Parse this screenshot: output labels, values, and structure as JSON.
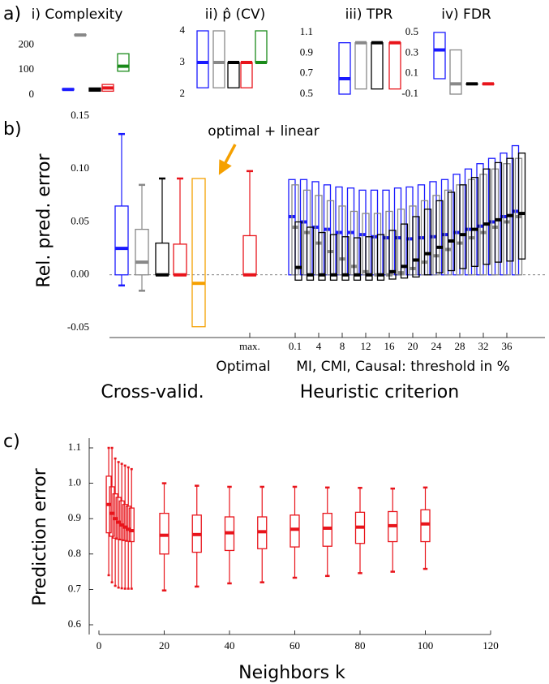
{
  "chart_data": [
    {
      "type": "box",
      "panel": "a)",
      "title": "i) Complexity",
      "ylim": [
        0,
        260
      ],
      "yticks": [
        0,
        100,
        200
      ],
      "boxes": [
        {
          "color": "#1a1aff",
          "q1": 20,
          "median": 22,
          "q3": 25
        },
        {
          "color": "#888888",
          "q1": 238,
          "median": 240,
          "q3": 242
        },
        {
          "color": "#000000",
          "q1": 15,
          "median": 20,
          "q3": 28
        },
        {
          "color": "#e8141b",
          "q1": 15,
          "median": 28,
          "q3": 42
        },
        {
          "color": "#1a8a1a",
          "q1": 95,
          "median": 115,
          "q3": 165
        }
      ]
    },
    {
      "type": "box",
      "title": "ii) p̂ (CV)",
      "ylim": [
        2,
        4
      ],
      "yticks": [
        2,
        3,
        4
      ],
      "boxes": [
        {
          "color": "#1a1aff",
          "q1": 2.2,
          "median": 3,
          "q3": 4
        },
        {
          "color": "#888888",
          "q1": 2.2,
          "median": 3,
          "q3": 4
        },
        {
          "color": "#000000",
          "q1": 2.2,
          "median": 3,
          "q3": 3
        },
        {
          "color": "#e8141b",
          "q1": 2.2,
          "median": 3,
          "q3": 3
        },
        {
          "color": "#1a8a1a",
          "q1": 3,
          "median": 3,
          "q3": 4
        }
      ]
    },
    {
      "type": "box",
      "title": "iii) TPR",
      "ylim": [
        0.5,
        1.1
      ],
      "yticks": [
        0.5,
        0.7,
        0.9,
        1.1
      ],
      "boxes": [
        {
          "color": "#1a1aff",
          "q1": 0.5,
          "median": 0.65,
          "q3": 1.0
        },
        {
          "color": "#888888",
          "q1": 0.55,
          "median": 1.0,
          "q3": 1.0
        },
        {
          "color": "#000000",
          "q1": 0.55,
          "median": 1.0,
          "q3": 1.0
        },
        {
          "color": "#e8141b",
          "q1": 0.55,
          "median": 1.0,
          "q3": 1.0
        }
      ]
    },
    {
      "type": "box",
      "title": "iv) FDR",
      "ylim": [
        -0.1,
        0.5
      ],
      "yticks": [
        -0.1,
        0.1,
        0.3,
        0.5
      ],
      "boxes": [
        {
          "color": "#1a1aff",
          "q1": 0.05,
          "median": 0.33,
          "q3": 0.5
        },
        {
          "color": "#888888",
          "q1": -0.1,
          "median": 0,
          "q3": 0.33
        },
        {
          "color": "#000000",
          "q1": 0,
          "median": 0,
          "q3": 0
        },
        {
          "color": "#e8141b",
          "q1": 0,
          "median": 0,
          "q3": 0
        }
      ]
    },
    {
      "type": "box",
      "panel": "b)",
      "ylabel": "Rel. pred. error",
      "ylim": [
        -0.05,
        0.15
      ],
      "yticks": [
        {
          "value": -0.05,
          "label": "-0.05"
        },
        {
          "value": 0,
          "label": "0.00"
        },
        {
          "value": 0.05,
          "label": "0.05"
        },
        {
          "value": 0.1,
          "label": "0.10"
        },
        {
          "value": 0.15,
          "label": "0.15"
        }
      ],
      "boxes": [
        {
          "color": "#1a1aff",
          "whislo": -0.01,
          "q1": 0,
          "median": 0.025,
          "q3": 0.065,
          "whishi": 0.133
        },
        {
          "color": "#888888",
          "whislo": -0.015,
          "q1": 0,
          "median": 0.012,
          "q3": 0.043,
          "whishi": 0.085
        },
        {
          "color": "#000000",
          "whislo": 0,
          "q1": 0,
          "median": 0,
          "q3": 0.03,
          "whishi": 0.091
        },
        {
          "color": "#e8141b",
          "whislo": 0,
          "q1": 0,
          "median": 0,
          "q3": 0.029,
          "whishi": 0.091
        },
        {
          "color": "#f5a000",
          "q1": -0.049,
          "median": -0.008,
          "q3": 0.091
        },
        {
          "color": "#e8141b",
          "whislo": 0,
          "q1": 0,
          "median": 0,
          "q3": 0.037,
          "whishi": 0.098
        }
      ],
      "annotation": "optimal + linear",
      "annotation_color": "#f5a000",
      "optimal_tick": "max.",
      "optimal_label": "Optimal",
      "threshold_label": "MI, CMI, Causal: threshold in %",
      "group_labels": [
        "Cross-valid.",
        "Heuristic criterion"
      ],
      "categories": [
        0.1,
        null,
        4,
        null,
        8,
        null,
        12,
        null,
        16,
        null,
        20,
        null,
        24,
        null,
        28,
        null,
        32,
        null,
        36,
        null
      ],
      "series": [
        {
          "color": "#1a1aff",
          "q1": [
            0,
            0,
            0,
            0,
            0,
            0,
            0,
            0,
            0,
            0,
            0,
            0,
            0,
            0,
            0,
            0,
            0,
            0,
            0,
            0
          ],
          "median": [
            0.055,
            0.05,
            0.045,
            0.043,
            0.04,
            0.04,
            0.038,
            0.036,
            0.035,
            0.035,
            0.034,
            0.035,
            0.036,
            0.038,
            0.04,
            0.043,
            0.046,
            0.05,
            0.055,
            0.06
          ],
          "q3": [
            0.09,
            0.09,
            0.088,
            0.085,
            0.083,
            0.082,
            0.08,
            0.08,
            0.08,
            0.082,
            0.083,
            0.085,
            0.088,
            0.09,
            0.095,
            0.1,
            0.105,
            0.11,
            0.115,
            0.122
          ]
        },
        {
          "color": "#888888",
          "q1": [
            0,
            0,
            0,
            0,
            0,
            0,
            0,
            0,
            0,
            0,
            0,
            0,
            0,
            0,
            0,
            0,
            0,
            0,
            0,
            0
          ],
          "median": [
            0.045,
            0.04,
            0.03,
            0.022,
            0.015,
            0.008,
            0.003,
            0,
            0,
            0.002,
            0.006,
            0.012,
            0.018,
            0.024,
            0.03,
            0.035,
            0.04,
            0.045,
            0.05,
            0.055
          ],
          "q3": [
            0.085,
            0.08,
            0.075,
            0.07,
            0.065,
            0.06,
            0.058,
            0.058,
            0.06,
            0.062,
            0.065,
            0.07,
            0.075,
            0.08,
            0.085,
            0.09,
            0.095,
            0.1,
            0.105,
            0.11
          ]
        },
        {
          "color": "#000000",
          "q1": [
            -0.005,
            -0.005,
            -0.005,
            -0.005,
            -0.005,
            -0.005,
            -0.005,
            -0.005,
            -0.004,
            -0.003,
            -0.002,
            0,
            0.002,
            0.004,
            0.006,
            0.008,
            0.01,
            0.012,
            0.013,
            0.015
          ],
          "median": [
            0.007,
            0,
            0,
            0,
            0,
            0,
            0,
            0,
            0.003,
            0.008,
            0.014,
            0.02,
            0.026,
            0.032,
            0.038,
            0.043,
            0.048,
            0.052,
            0.056,
            0.058
          ],
          "q3": [
            0.05,
            0.045,
            0.04,
            0.038,
            0.036,
            0.035,
            0.036,
            0.038,
            0.042,
            0.048,
            0.055,
            0.062,
            0.07,
            0.078,
            0.085,
            0.092,
            0.1,
            0.106,
            0.11,
            0.115
          ]
        }
      ]
    },
    {
      "type": "box",
      "panel": "c)",
      "ylabel": "Prediction error",
      "xlabel": "Neighbors k",
      "xlim": [
        0,
        120
      ],
      "xticks": [
        0,
        20,
        40,
        60,
        80,
        100,
        120
      ],
      "ylim": [
        0.6,
        1.1
      ],
      "yticks": [
        0.6,
        0.7,
        0.8,
        0.9,
        {
          "value": 1.0,
          "label": "1.0"
        },
        1.1
      ],
      "x": [
        3,
        4,
        5,
        6,
        7,
        8,
        9,
        10,
        20,
        30,
        40,
        50,
        60,
        70,
        80,
        90,
        100
      ],
      "series": [
        {
          "color": "#e8141b",
          "whislo": [
            0.74,
            0.72,
            0.71,
            0.705,
            0.703,
            0.702,
            0.702,
            0.702,
            0.697,
            0.708,
            0.717,
            0.72,
            0.733,
            0.738,
            0.746,
            0.75,
            0.758
          ],
          "q1": [
            0.86,
            0.85,
            0.845,
            0.842,
            0.84,
            0.838,
            0.836,
            0.835,
            0.8,
            0.805,
            0.81,
            0.815,
            0.82,
            0.822,
            0.83,
            0.835,
            0.835
          ],
          "median": [
            0.94,
            0.915,
            0.9,
            0.89,
            0.882,
            0.876,
            0.87,
            0.866,
            0.853,
            0.855,
            0.86,
            0.863,
            0.87,
            0.873,
            0.876,
            0.88,
            0.885
          ],
          "q3": [
            1.02,
            0.99,
            0.97,
            0.96,
            0.95,
            0.94,
            0.935,
            0.93,
            0.915,
            0.91,
            0.905,
            0.905,
            0.91,
            0.915,
            0.918,
            0.92,
            0.925
          ],
          "whishi": [
            1.1,
            1.1,
            1.07,
            1.06,
            1.055,
            1.05,
            1.045,
            1.04,
            1.0,
            0.993,
            0.99,
            0.99,
            0.99,
            0.988,
            0.987,
            0.985,
            0.988
          ]
        }
      ]
    }
  ]
}
